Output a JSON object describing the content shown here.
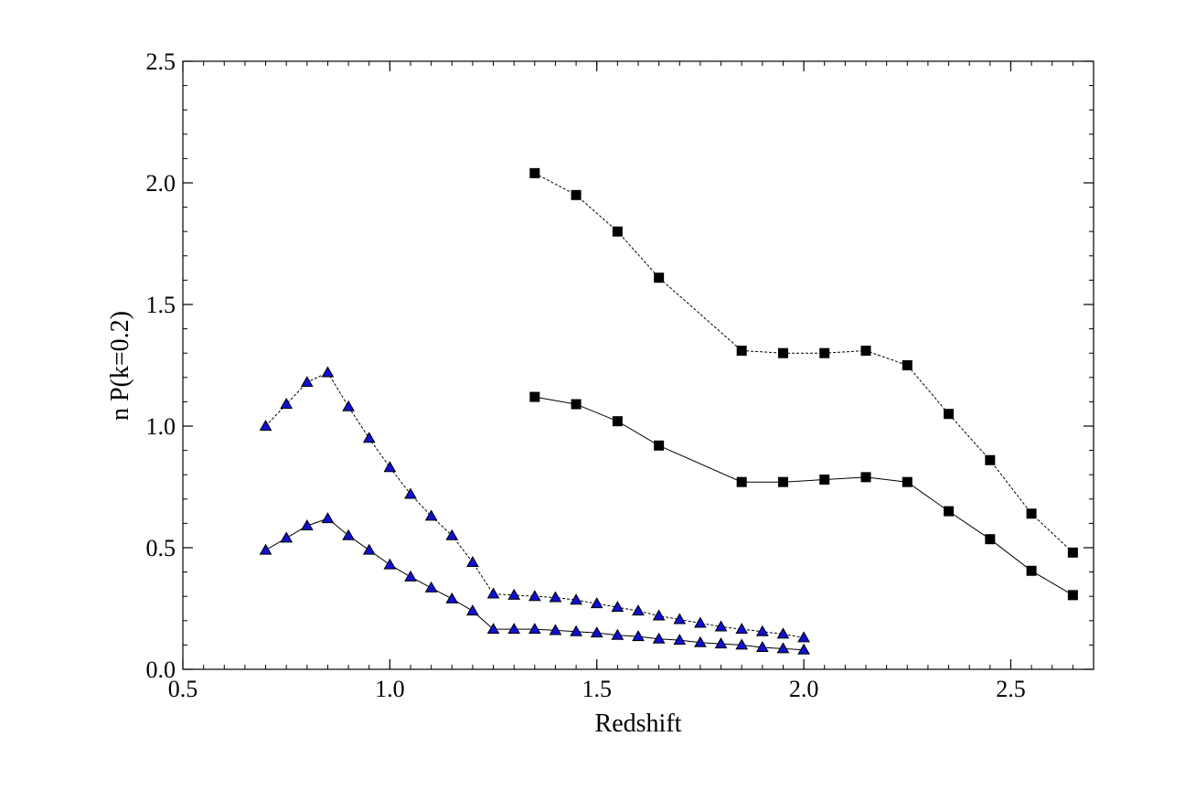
{
  "chart_data": {
    "type": "line",
    "title": "",
    "xlabel": "Redshift",
    "ylabel": "n P(k=0.2)",
    "xlim": [
      0.5,
      2.7
    ],
    "ylim": [
      0.0,
      2.5
    ],
    "x_ticks": [
      "0.5",
      "1.0",
      "1.5",
      "2.0",
      "2.5"
    ],
    "y_ticks": [
      "0.0",
      "0.5",
      "1.0",
      "1.5",
      "2.0",
      "2.5"
    ],
    "x_tick_values": [
      0.5,
      1.0,
      1.5,
      2.0,
      2.5
    ],
    "y_tick_values": [
      0.0,
      0.5,
      1.0,
      1.5,
      2.0,
      2.5
    ],
    "grid": false,
    "legend": "none",
    "series": [
      {
        "marker": "triangle",
        "line": "dashed",
        "color": "#1010d0",
        "x": [
          0.7,
          0.75,
          0.8,
          0.85,
          0.9,
          0.95,
          1.0,
          1.05,
          1.1,
          1.15,
          1.2,
          1.25,
          1.3,
          1.35,
          1.4,
          1.45,
          1.5,
          1.55,
          1.6,
          1.65,
          1.7,
          1.75,
          1.8,
          1.85,
          1.9,
          1.95,
          2.0
        ],
        "y": [
          1.0,
          1.09,
          1.18,
          1.22,
          1.08,
          0.95,
          0.83,
          0.72,
          0.63,
          0.55,
          0.44,
          0.31,
          0.305,
          0.3,
          0.295,
          0.285,
          0.27,
          0.255,
          0.24,
          0.22,
          0.205,
          0.19,
          0.175,
          0.165,
          0.155,
          0.145,
          0.13
        ]
      },
      {
        "marker": "triangle",
        "line": "solid",
        "color": "#1010d0",
        "x": [
          0.7,
          0.75,
          0.8,
          0.85,
          0.9,
          0.95,
          1.0,
          1.05,
          1.1,
          1.15,
          1.2,
          1.25,
          1.3,
          1.35,
          1.4,
          1.45,
          1.5,
          1.55,
          1.6,
          1.65,
          1.7,
          1.75,
          1.8,
          1.85,
          1.9,
          1.95,
          2.0
        ],
        "y": [
          0.49,
          0.54,
          0.59,
          0.62,
          0.55,
          0.49,
          0.43,
          0.38,
          0.335,
          0.29,
          0.24,
          0.165,
          0.165,
          0.165,
          0.16,
          0.155,
          0.15,
          0.14,
          0.135,
          0.125,
          0.12,
          0.11,
          0.105,
          0.1,
          0.09,
          0.085,
          0.08
        ]
      },
      {
        "marker": "square",
        "line": "dashed",
        "color": "#000000",
        "x": [
          1.35,
          1.45,
          1.55,
          1.65,
          1.85,
          1.95,
          2.05,
          2.15,
          2.25,
          2.35,
          2.45,
          2.55,
          2.65
        ],
        "y": [
          2.04,
          1.95,
          1.8,
          1.61,
          1.31,
          1.3,
          1.3,
          1.31,
          1.25,
          1.05,
          0.86,
          0.64,
          0.48
        ]
      },
      {
        "marker": "square",
        "line": "solid",
        "color": "#000000",
        "x": [
          1.35,
          1.45,
          1.55,
          1.65,
          1.85,
          1.95,
          2.05,
          2.15,
          2.25,
          2.35,
          2.45,
          2.55,
          2.65
        ],
        "y": [
          1.12,
          1.09,
          1.02,
          0.92,
          0.77,
          0.77,
          0.78,
          0.79,
          0.77,
          0.65,
          0.535,
          0.405,
          0.305
        ]
      }
    ]
  }
}
